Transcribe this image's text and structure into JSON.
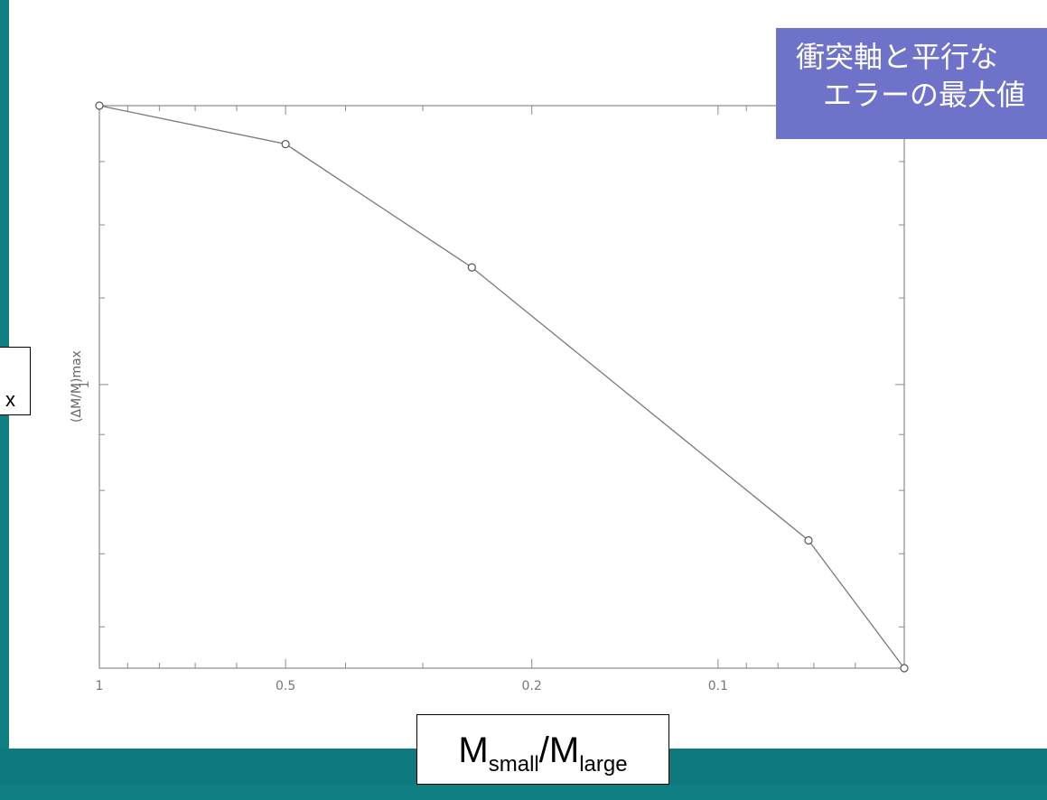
{
  "slide": {
    "title_line1": "衝突軸と平行な",
    "title_line2": "エラーの最大値",
    "ylabel_overlay": "x",
    "xlabel_overlay": {
      "base1": "M",
      "sub1": "small",
      "sep": "/",
      "base2": "M",
      "sub2": "large"
    },
    "colors": {
      "background": "#0f7f82",
      "title_box": "#6f72c9",
      "line": "#7a7a7a"
    }
  },
  "chart_data": {
    "type": "line",
    "x_scale": "log",
    "x_reversed": true,
    "xlim": [
      1,
      0.05
    ],
    "ylim": [
      0.55,
      1.8
    ],
    "y_scale": "log",
    "xticks": [
      1,
      0.5,
      0.2,
      0.1
    ],
    "xtick_labels": [
      "1",
      "0.5",
      "0.2",
      "0.1"
    ],
    "yticks": [
      1
    ],
    "ytick_labels": [
      "1"
    ],
    "ylabel": "(ΔM/M)max",
    "xlabel": "",
    "grid": false,
    "series": [
      {
        "x": [
          1,
          0.5,
          0.25,
          0.0714,
          0.05
        ],
        "y": [
          1.8,
          1.66,
          1.28,
          0.72,
          0.55
        ]
      }
    ]
  }
}
